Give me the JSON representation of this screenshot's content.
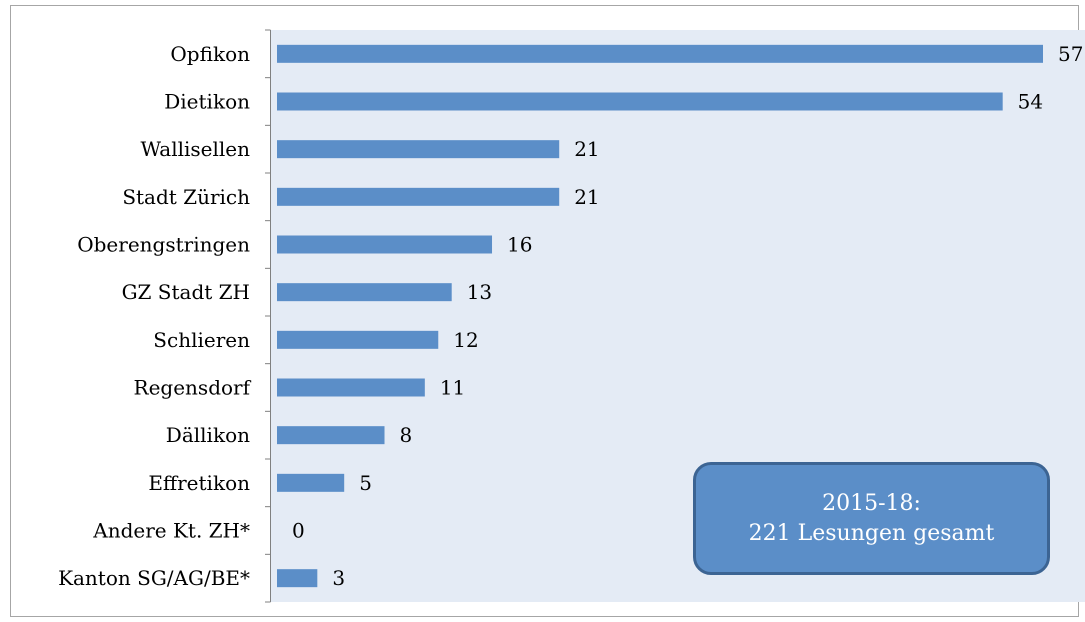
{
  "chart_data": {
    "type": "bar",
    "orientation": "horizontal",
    "title": "",
    "categories": [
      "Opfikon",
      "Dietikon",
      "Wallisellen",
      "Stadt Zürich",
      "Oberengstringen",
      "GZ Stadt ZH",
      "Schlieren",
      "Regensdorf",
      "Dällikon",
      "Effretikon",
      "Andere Kt. ZH*",
      "Kanton SG/AG/BE*"
    ],
    "values": [
      57,
      54,
      21,
      21,
      16,
      13,
      12,
      11,
      8,
      5,
      0,
      3
    ],
    "xlim": [
      0,
      60
    ],
    "grid": false,
    "legend": "none",
    "data_labels": true,
    "bar_color": "#5b8ec8",
    "plot_background": "#e4ebf5",
    "annotation": {
      "line1": "2015-18:",
      "line2": "221 Lesungen gesamt",
      "fill": "#5b8ec8",
      "border": "#3c6493"
    }
  }
}
